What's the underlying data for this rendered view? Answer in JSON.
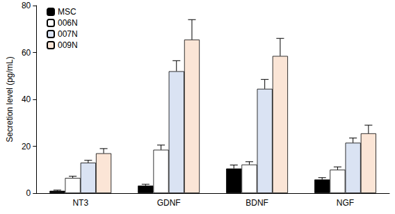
{
  "chart_data": {
    "type": "bar",
    "categories": [
      "NT3",
      "GDNF",
      "BDNF",
      "NGF"
    ],
    "ylabel": "Secretion level (pg/mL)",
    "ylim": [
      0,
      80
    ],
    "yticks": [
      0,
      20,
      40,
      60,
      80
    ],
    "grid": false,
    "legend": "upper left",
    "series": [
      {
        "name": "MSC",
        "color": "#000000",
        "values": [
          1.0,
          3.2,
          10.5,
          5.8
        ],
        "errors": [
          0.3,
          0.6,
          1.5,
          0.8
        ]
      },
      {
        "name": "006N",
        "color": "#ffffff",
        "values": [
          6.5,
          18.5,
          12.2,
          10.0
        ],
        "errors": [
          0.7,
          2.0,
          1.2,
          1.2
        ]
      },
      {
        "name": "007N",
        "color": "#dae3f3",
        "values": [
          13.0,
          52.0,
          44.5,
          21.5
        ],
        "errors": [
          1.0,
          4.5,
          4.0,
          2.0
        ]
      },
      {
        "name": "009N",
        "color": "#fbe5d6",
        "values": [
          17.0,
          65.5,
          58.5,
          25.5
        ],
        "errors": [
          2.0,
          8.5,
          7.5,
          3.5
        ]
      }
    ]
  }
}
